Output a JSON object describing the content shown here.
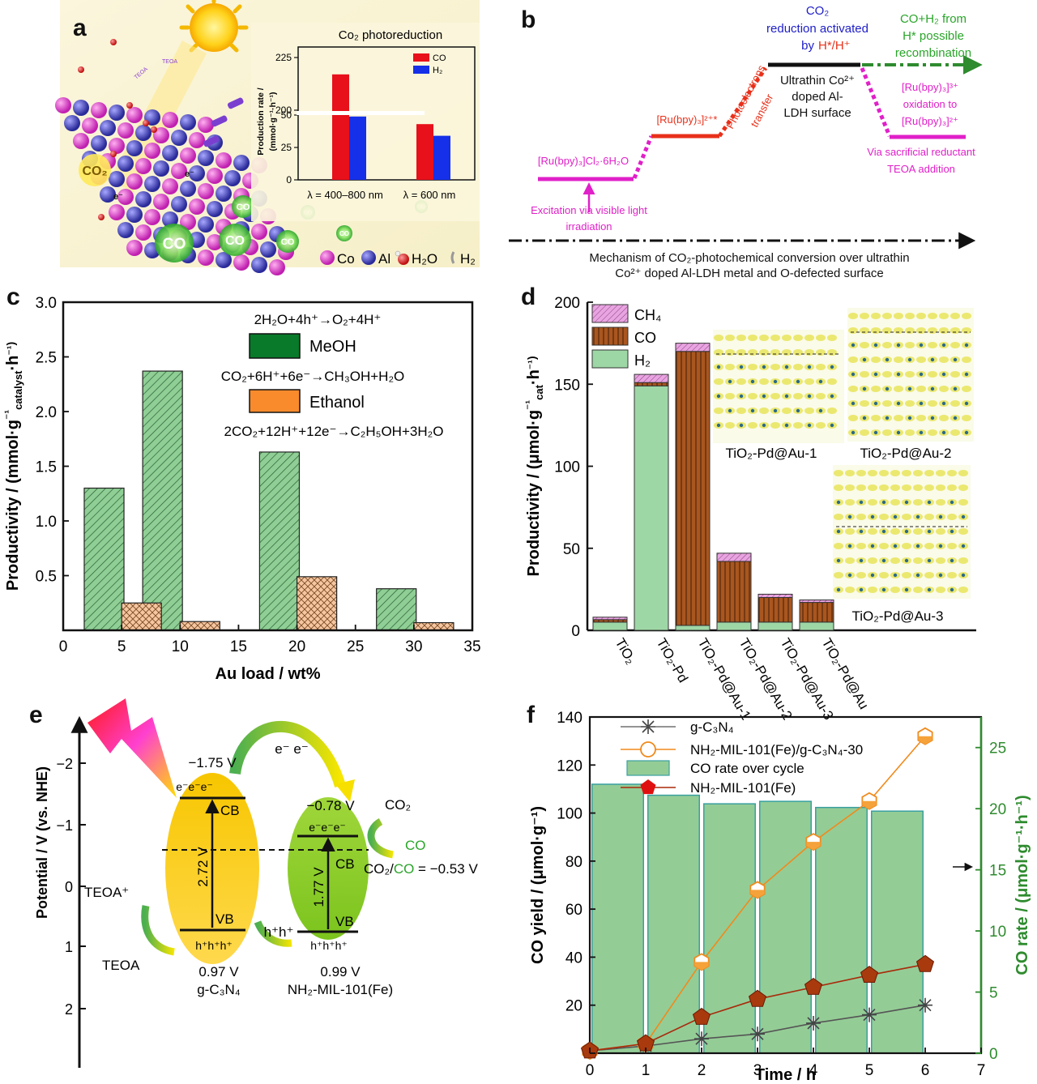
{
  "panels": {
    "a": {
      "letter": "a",
      "inset_title": "Co₂ photoreduction",
      "ylabel_line1": "Production rate /",
      "ylabel_line2": "(mmol·g⁻¹·h⁻¹)",
      "legend": [
        "CO",
        "H₂"
      ],
      "legend_colors": [
        "#e8101a",
        "#1530e8"
      ],
      "yticks": [
        "0",
        "25",
        "50",
        "200",
        "225"
      ],
      "xlabels": [
        "λ = 400–800 nm",
        "λ = 600 nm"
      ],
      "scene_labels": [
        "TEOA",
        "TEOA",
        "CO₂",
        "e⁻",
        "e⁻",
        "CO",
        "CO",
        "CO",
        "CO",
        "CO",
        "CO",
        "CO"
      ],
      "atom_legend": [
        "Co",
        "Al",
        "H₂O",
        "H₂"
      ]
    },
    "b": {
      "letter": "b",
      "level1": "[Ru(bpy)₃]Cl₂·6H₂O",
      "level2": "[Ru(bpy)₃]²⁺*",
      "level3_lines": [
        "Ultrathin Co²⁺",
        "doped Al-",
        "LDH surface"
      ],
      "top_blue_lines": [
        "CO₂",
        "reduction activated",
        "by"
      ],
      "top_red": "H*/H⁺",
      "green_lines": [
        "CO+H₂ from",
        "H* possible",
        "recombination"
      ],
      "photoelectrons_lines": [
        "Photoelectrons",
        "transfer"
      ],
      "oxidation_lines": [
        "[Ru(bpy)₃]³⁺",
        "oxidation to",
        "[Ru(bpy)₃]²⁺"
      ],
      "sacrificial_lines": [
        "Via sacrificial reductant",
        "TEOA addition"
      ],
      "excitation_lines": [
        "Excitation via visible light",
        "irradiation"
      ],
      "mechanism_lines": [
        "Mechanism of CO₂-photochemical conversion over ultrathin",
        "Co²⁺ doped Al-LDH metal and O-defected surface"
      ]
    },
    "c": {
      "letter": "c",
      "legend": [
        "MeOH",
        "Ethanol"
      ],
      "eq1": "2H₂O+4h⁺→O₂+4H⁺",
      "eq2": "CO₂+6H⁺+6e⁻→CH₃OH+H₂O",
      "eq3": "2CO₂+12H⁺+12e⁻→C₂H₅OH+3H₂O",
      "colors": {
        "meoh": "#8fcf95",
        "ethanol": "#f5c6a0",
        "meoh_swatch": "#087a2a",
        "ethanol_swatch": "#f98b2c"
      }
    },
    "d": {
      "letter": "d",
      "legend": [
        "CH₄",
        "CO",
        "H₂"
      ],
      "colors": {
        "ch4": "#e8a4e0",
        "co": "#a9561f",
        "h2": "#9ed7a6"
      },
      "inset_labels": [
        "TiO₂-Pd@Au-1",
        "TiO₂-Pd@Au-2",
        "TiO₂-Pd@Au-3"
      ]
    },
    "e": {
      "letter": "e",
      "ylabel": "Potential / V (vs. NHE)",
      "yticks": [
        "−2",
        "−1",
        "0",
        "1",
        "2"
      ],
      "left_cb": "−1.75 V",
      "left_vb": "0.97 V",
      "left_gap": "2.72 V",
      "left_name": "g-C₃N₄",
      "right_cb": "−0.78 V",
      "right_vb": "0.99 V",
      "right_gap": "1.77 V",
      "right_name": "NH₂-MIL-101(Fe)",
      "cb": "CB",
      "vb": "VB",
      "electrons": "e⁻e⁻e⁻",
      "holes": "h⁺h⁺h⁺",
      "transfer_e": "e⁻ e⁻",
      "transfer_h": "h⁺h⁺",
      "co2": "CO₂",
      "co": "CO",
      "redox_prefix": "CO₂/",
      "redox_co": "CO",
      "redox_suffix": " = −0.53 V",
      "teoa_plus": "TEOA⁺",
      "teoa": "TEOA"
    },
    "f": {
      "letter": "f"
    }
  },
  "chart_data": [
    {
      "panel": "a",
      "type": "bar",
      "title": "Co₂ photoreduction",
      "categories": [
        "λ = 400–800 nm",
        "λ = 600 nm"
      ],
      "series": [
        {
          "name": "CO",
          "values": [
            217,
            43
          ]
        },
        {
          "name": "H₂",
          "values": [
            197,
            34
          ]
        }
      ],
      "ylabel": "Production rate / (mmol·g⁻¹·h⁻¹)",
      "yaxis_break": [
        50,
        200
      ],
      "ylim": [
        0,
        230
      ]
    },
    {
      "panel": "c",
      "type": "bar",
      "xlabel": "Au load / wt%",
      "ylabel": "Productivity / (mmol·g⁻¹catalyst·h⁻¹)",
      "xlim": [
        0,
        35
      ],
      "ylim": [
        0,
        3.0
      ],
      "xticks": [
        0,
        5,
        10,
        15,
        20,
        25,
        30,
        35
      ],
      "yticks": [
        0.5,
        1.0,
        1.5,
        2.0,
        2.5,
        3.0
      ],
      "series": [
        {
          "name": "MeOH",
          "x": [
            3.5,
            8.5,
            18.5,
            28.5
          ],
          "values": [
            1.3,
            2.37,
            1.63,
            0.38
          ]
        },
        {
          "name": "Ethanol",
          "x": [
            5,
            10,
            20,
            30
          ],
          "values": [
            0.25,
            0.08,
            0.49,
            0.07
          ]
        }
      ]
    },
    {
      "panel": "d",
      "type": "bar",
      "stacked": true,
      "ylabel": "Productivity / (μmol·g⁻¹cat·h⁻¹)",
      "ylim": [
        0,
        200
      ],
      "yticks": [
        0,
        50,
        100,
        150,
        200
      ],
      "categories": [
        "TiO₂",
        "TiO₂-Pd",
        "TiO₂-Pd@Au-1",
        "TiO₂-Pd@Au-2",
        "TiO₂-Pd@Au-3",
        "TiO₂-Pd@Au"
      ],
      "series": [
        {
          "name": "H₂",
          "values": [
            5,
            149,
            3,
            5,
            5,
            5
          ]
        },
        {
          "name": "CO",
          "values": [
            1.5,
            2,
            167,
            37,
            15,
            12
          ]
        },
        {
          "name": "CH₄",
          "values": [
            1.5,
            5,
            5,
            5,
            2,
            1.5
          ]
        }
      ]
    },
    {
      "panel": "f",
      "type": "line",
      "xlabel": "Time / h",
      "ylabel": "CO yield / (μmol·g⁻¹)",
      "y2label": "CO rate / (μmol·g⁻¹·h⁻¹)",
      "xlim": [
        0,
        7
      ],
      "ylim": [
        0,
        140
      ],
      "y2lim": [
        0,
        27.5
      ],
      "xticks": [
        0,
        1,
        2,
        3,
        4,
        5,
        6,
        7
      ],
      "yticks": [
        0,
        20,
        40,
        60,
        80,
        100,
        120,
        140
      ],
      "y2ticks": [
        0,
        5,
        10,
        15,
        20,
        25
      ],
      "series": [
        {
          "name": "g-C₃N₄",
          "x": [
            0,
            1,
            2,
            3,
            4,
            5,
            6
          ],
          "values": [
            1,
            3,
            6,
            8,
            12.5,
            16,
            20
          ]
        },
        {
          "name": "NH₂-MIL-101(Fe)/g-C₃N₄-30",
          "x": [
            0,
            1,
            2,
            3,
            4,
            5,
            6
          ],
          "values": [
            1,
            4,
            38,
            68,
            88,
            105,
            132
          ]
        },
        {
          "name": "NH₂-MIL-101(Fe)",
          "x": [
            0,
            1,
            2,
            3,
            4,
            5,
            6
          ],
          "values": [
            1,
            4,
            15,
            22.5,
            27.5,
            32.5,
            37
          ]
        }
      ],
      "bars": {
        "name": "CO rate over cycle",
        "x": [
          0.5,
          1.5,
          2.5,
          3.5,
          4.5,
          5.5
        ],
        "values": [
          22.0,
          21.1,
          20.4,
          20.6,
          20.1,
          19.8
        ]
      }
    }
  ]
}
